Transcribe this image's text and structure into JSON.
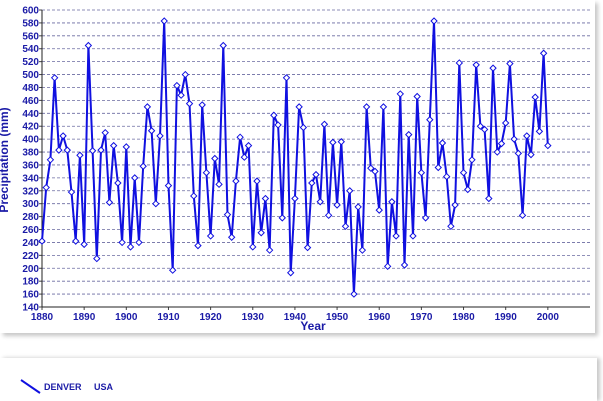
{
  "chart_data": {
    "type": "line",
    "xlabel": "Year",
    "ylabel": "Precipitation (mm)",
    "xlim": [
      1880,
      2010
    ],
    "ylim": [
      140,
      600
    ],
    "x_ticks": [
      1880,
      1890,
      1900,
      1910,
      1920,
      1930,
      1940,
      1950,
      1960,
      1970,
      1980,
      1990,
      2000
    ],
    "y_ticks": [
      140,
      160,
      180,
      200,
      220,
      240,
      260,
      280,
      300,
      320,
      340,
      360,
      380,
      400,
      420,
      440,
      460,
      480,
      500,
      520,
      540,
      560,
      580,
      600
    ],
    "grid": "horizontal dashed",
    "line_color": "#1010e0",
    "legend_position": "bottom-left",
    "series": [
      {
        "name": "DENVER",
        "country": "USA",
        "x": [
          1880,
          1881,
          1882,
          1883,
          1884,
          1885,
          1886,
          1887,
          1888,
          1889,
          1890,
          1891,
          1892,
          1893,
          1894,
          1895,
          1896,
          1897,
          1898,
          1899,
          1900,
          1901,
          1902,
          1903,
          1904,
          1905,
          1906,
          1907,
          1908,
          1909,
          1910,
          1911,
          1912,
          1913,
          1914,
          1915,
          1916,
          1917,
          1918,
          1919,
          1920,
          1921,
          1922,
          1923,
          1924,
          1925,
          1926,
          1927,
          1928,
          1929,
          1930,
          1931,
          1932,
          1933,
          1934,
          1935,
          1936,
          1937,
          1938,
          1939,
          1940,
          1941,
          1942,
          1943,
          1944,
          1945,
          1946,
          1947,
          1948,
          1949,
          1950,
          1951,
          1952,
          1953,
          1954,
          1955,
          1956,
          1957,
          1958,
          1959,
          1960,
          1961,
          1962,
          1963,
          1964,
          1965,
          1966,
          1967,
          1968,
          1969,
          1970,
          1971,
          1972,
          1973,
          1974,
          1975,
          1976,
          1977,
          1978,
          1979,
          1980,
          1981,
          1982,
          1983,
          1984,
          1985,
          1986,
          1987,
          1988,
          1989,
          1990,
          1991,
          1992,
          1993,
          1994,
          1995,
          1996,
          1997,
          1998,
          1999,
          2000
        ],
        "values": [
          242,
          325,
          368,
          495,
          383,
          405,
          383,
          318,
          242,
          375,
          237,
          545,
          382,
          215,
          383,
          410,
          302,
          390,
          332,
          240,
          388,
          233,
          340,
          240,
          358,
          450,
          413,
          300,
          405,
          583,
          328,
          197,
          483,
          468,
          500,
          455,
          312,
          235,
          453,
          348,
          250,
          370,
          330,
          545,
          283,
          248,
          335,
          403,
          372,
          390,
          233,
          335,
          255,
          308,
          228,
          437,
          422,
          278,
          495,
          193,
          308,
          450,
          418,
          232,
          332,
          345,
          303,
          423,
          282,
          395,
          298,
          396,
          265,
          320,
          160,
          295,
          228,
          450,
          355,
          350,
          290,
          450,
          203,
          303,
          250,
          470,
          205,
          407,
          250,
          466,
          348,
          278,
          430,
          583,
          356,
          394,
          342,
          265,
          298,
          518,
          348,
          322,
          368,
          515,
          420,
          415,
          308,
          510,
          380,
          393,
          425,
          517,
          400,
          378,
          282,
          405,
          376,
          465,
          412,
          533,
          390
        ]
      }
    ]
  }
}
